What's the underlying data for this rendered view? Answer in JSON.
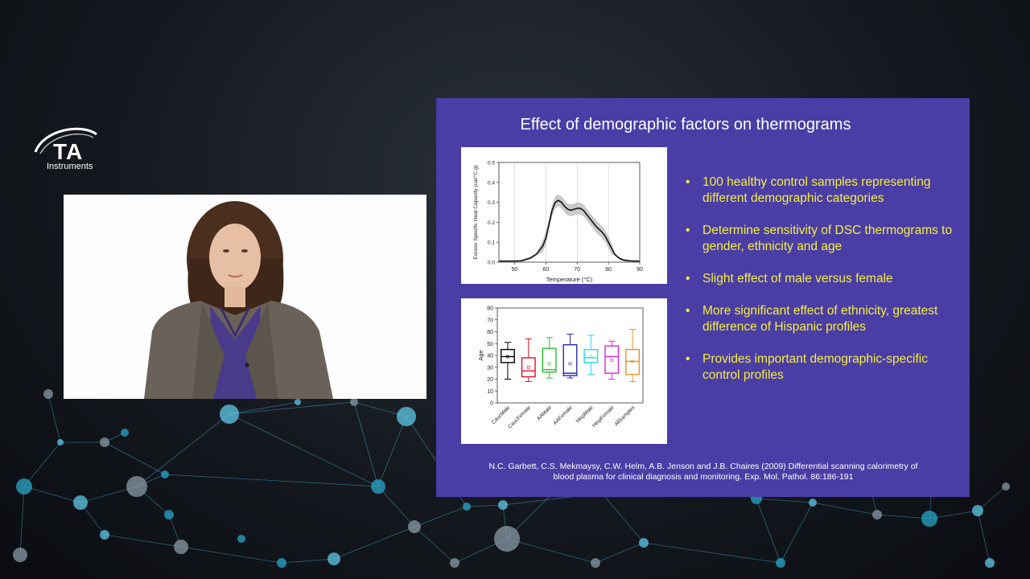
{
  "logo": {
    "brand": "TA",
    "subtitle": "Instruments",
    "icon": "swoosh-icon"
  },
  "slide": {
    "title": "Effect of demographic factors on thermograms",
    "bullets": [
      "100 healthy control samples representing different demographic categories",
      "Determine sensitivity of DSC thermograms to gender, ethnicity and age",
      "Slight effect of male versus female",
      "More significant effect of ethnicity, greatest difference of Hispanic profiles",
      "Provides important demographic-specific control profiles"
    ],
    "bullet_marker": "•",
    "citation_line1": "N.C. Garbett, C.S. Mekmaysy, C.W. Helm, A.B. Jenson and J.B. Chaires (2009) Differential scanning calorimetry of",
    "citation_line2": "blood plasma for clinical diagnosis and monitoring. Exp. Mol. Pathol. 86:186-191",
    "background_color": "#4a3da6",
    "bullet_color": "#f5f03a"
  },
  "chart_data": [
    {
      "type": "line",
      "xlabel": "Temperature (°C)",
      "ylabel": "Excess Specific Heat Capacity (cal/°C.g)",
      "xlim": [
        45,
        90
      ],
      "ylim": [
        0,
        0.5
      ],
      "xticks": [
        "50",
        "60",
        "70",
        "80",
        "90"
      ],
      "yticks": [
        "0.0",
        "0.1",
        "0.2",
        "0.3",
        "0.4",
        "0.5"
      ],
      "series": [
        {
          "x": [
            45,
            50,
            52,
            55,
            57,
            59,
            60,
            61,
            62,
            63,
            64,
            65,
            66,
            67,
            68,
            69,
            70,
            71,
            72,
            73,
            74,
            75,
            76,
            77,
            78,
            79,
            80,
            81,
            82,
            83,
            84,
            85,
            86,
            87,
            88,
            90
          ],
          "y": [
            0.005,
            0.005,
            0.006,
            0.02,
            0.04,
            0.08,
            0.12,
            0.19,
            0.26,
            0.3,
            0.31,
            0.3,
            0.28,
            0.265,
            0.26,
            0.265,
            0.27,
            0.27,
            0.26,
            0.24,
            0.22,
            0.2,
            0.18,
            0.165,
            0.15,
            0.13,
            0.1,
            0.07,
            0.04,
            0.025,
            0.015,
            0.01,
            0.008,
            0.006,
            0.005,
            0.005
          ],
          "band": 0.03
        }
      ],
      "grid": false,
      "vertical_guides": [
        50,
        60,
        70,
        80
      ]
    },
    {
      "type": "box",
      "ylabel": "Age",
      "ylim": [
        0,
        80
      ],
      "yticks": [
        "0",
        "10",
        "20",
        "30",
        "40",
        "50",
        "60",
        "70",
        "80"
      ],
      "categories": [
        "CaucMale",
        "CaucFemale",
        "AAMale",
        "AAFemale",
        "HispMale",
        "HispFemale",
        "AllSamples"
      ],
      "colors": [
        "#000000",
        "#e0102a",
        "#29c22a",
        "#2a2aa8",
        "#29d8e6",
        "#d829d8",
        "#e8922a"
      ],
      "boxes": [
        {
          "min": 20,
          "q1": 34,
          "median": 39,
          "q3": 45,
          "max": 51,
          "mean": 39
        },
        {
          "min": 18,
          "q1": 22,
          "median": 27,
          "q3": 38,
          "max": 54,
          "mean": 30
        },
        {
          "min": 21,
          "q1": 26,
          "median": 28,
          "q3": 46,
          "max": 55,
          "mean": 33
        },
        {
          "min": 21,
          "q1": 23,
          "median": 25,
          "q3": 49,
          "max": 58,
          "mean": 33
        },
        {
          "min": 24,
          "q1": 34,
          "median": 38,
          "q3": 45,
          "max": 57,
          "mean": 39
        },
        {
          "min": 20,
          "q1": 25,
          "median": 39,
          "q3": 48,
          "max": 52,
          "mean": 36
        },
        {
          "min": 18,
          "q1": 24,
          "median": 35,
          "q3": 45,
          "max": 62,
          "mean": 35
        }
      ],
      "grid": false
    }
  ]
}
